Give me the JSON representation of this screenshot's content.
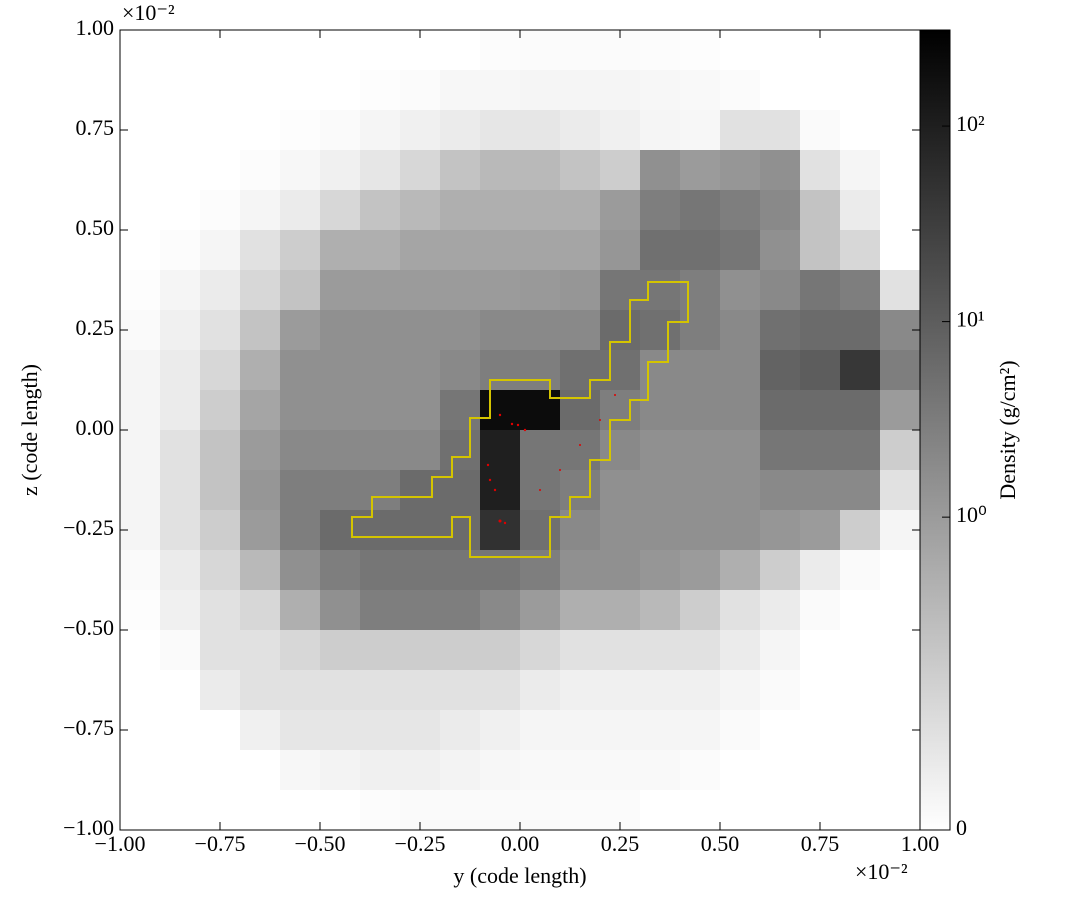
{
  "chart_data": {
    "type": "heatmap",
    "xlabel": "y  (code length)",
    "ylabel": "z  (code length)",
    "x_offset_label": "×10⁻²",
    "y_offset_label": "×10⁻²",
    "xlim": [
      -1,
      1
    ],
    "ylim": [
      -1,
      1
    ],
    "xticks": [
      {
        "value": -1,
        "label": "−1.00"
      },
      {
        "value": -0.75,
        "label": "−0.75"
      },
      {
        "value": -0.5,
        "label": "−0.50"
      },
      {
        "value": -0.25,
        "label": "−0.25"
      },
      {
        "value": 0,
        "label": "0.00"
      },
      {
        "value": 0.25,
        "label": "0.25"
      },
      {
        "value": 0.5,
        "label": "0.50"
      },
      {
        "value": 0.75,
        "label": "0.75"
      },
      {
        "value": 1,
        "label": "1.00"
      }
    ],
    "yticks": [
      {
        "value": -1,
        "label": "−1.00"
      },
      {
        "value": -0.75,
        "label": "−0.75"
      },
      {
        "value": -0.5,
        "label": "−0.50"
      },
      {
        "value": -0.25,
        "label": "−0.25"
      },
      {
        "value": 0,
        "label": "0.00"
      },
      {
        "value": 0.25,
        "label": "0.25"
      },
      {
        "value": 0.5,
        "label": "0.50"
      },
      {
        "value": 0.75,
        "label": "0.75"
      },
      {
        "value": 1,
        "label": "1.00"
      }
    ],
    "colorbar": {
      "label": "Density  (g/cm²)",
      "scale": "symlog",
      "linthresh": 1,
      "linscale": 1.6,
      "lim": [
        0,
        310
      ],
      "ticks": [
        0,
        {
          "value": 1,
          "label": "10⁰"
        },
        {
          "value": 10,
          "label": "10¹"
        },
        {
          "value": 100,
          "label": "10²"
        }
      ]
    },
    "z": [
      [
        0,
        0,
        0,
        0,
        0,
        0,
        0,
        0,
        0,
        0.03,
        0.04,
        0.04,
        0.04,
        0.03,
        0.02,
        0,
        0,
        0,
        0,
        0
      ],
      [
        0,
        0,
        0,
        0,
        0,
        0,
        0.02,
        0.04,
        0.08,
        0.08,
        0.1,
        0.1,
        0.1,
        0.08,
        0.06,
        0.04,
        0,
        0,
        0,
        0
      ],
      [
        0,
        0,
        0,
        0,
        0.02,
        0.05,
        0.1,
        0.15,
        0.2,
        0.25,
        0.25,
        0.2,
        0.15,
        0.1,
        0.08,
        0.3,
        0.3,
        0.05,
        0,
        0
      ],
      [
        0,
        0,
        0,
        0.03,
        0.08,
        0.15,
        0.25,
        0.4,
        0.6,
        0.7,
        0.7,
        0.6,
        0.5,
        1.5,
        1,
        1.2,
        1.5,
        0.3,
        0.1,
        0
      ],
      [
        0,
        0,
        0.03,
        0.1,
        0.2,
        0.4,
        0.6,
        0.7,
        0.8,
        0.8,
        0.8,
        0.8,
        1,
        3,
        4,
        3,
        2,
        0.6,
        0.2,
        0
      ],
      [
        0,
        0.03,
        0.1,
        0.3,
        0.5,
        0.8,
        0.8,
        0.9,
        0.9,
        0.9,
        0.9,
        0.9,
        1.2,
        5,
        5,
        4,
        1.5,
        0.6,
        0.4,
        0
      ],
      [
        0.02,
        0.1,
        0.2,
        0.4,
        0.6,
        1,
        1,
        1,
        1,
        1,
        1.1,
        1.2,
        4,
        4,
        3,
        1.5,
        2,
        4,
        3,
        0.3
      ],
      [
        0.05,
        0.15,
        0.3,
        0.6,
        1,
        1.5,
        1.5,
        1.5,
        1.5,
        2,
        2,
        2,
        6,
        5,
        3,
        2,
        5,
        6,
        6,
        2
      ],
      [
        0.1,
        0.2,
        0.4,
        0.8,
        1.5,
        1.5,
        1.5,
        1.5,
        2,
        3,
        3,
        5,
        5,
        2,
        2,
        2,
        8,
        10,
        40,
        3
      ],
      [
        0.1,
        0.2,
        0.5,
        0.9,
        1.5,
        1.5,
        1.5,
        1.5,
        4,
        200,
        200,
        6,
        3,
        2,
        2,
        2,
        6,
        6,
        6,
        1
      ],
      [
        0.1,
        0.3,
        0.6,
        1,
        2,
        2,
        2,
        2,
        5,
        100,
        4,
        4,
        2,
        1.5,
        1.5,
        1.5,
        4,
        4,
        4,
        0.5
      ],
      [
        0.1,
        0.3,
        0.6,
        1.2,
        3,
        3,
        3,
        6,
        6,
        100,
        4,
        3,
        1.5,
        1.5,
        1.5,
        1.5,
        2,
        2,
        2,
        0.3
      ],
      [
        0.1,
        0.3,
        0.5,
        1,
        3,
        6,
        6,
        6,
        6,
        50,
        5,
        2,
        1.5,
        1.5,
        1.5,
        1.5,
        1.2,
        1,
        0.5,
        0.1
      ],
      [
        0.05,
        0.2,
        0.4,
        0.7,
        1.5,
        3,
        4,
        4,
        4,
        4,
        3,
        1.5,
        1.5,
        1.2,
        1,
        0.8,
        0.5,
        0.2,
        0.05,
        0
      ],
      [
        0.02,
        0.15,
        0.3,
        0.4,
        0.8,
        1.5,
        3,
        3,
        3,
        2,
        1,
        0.8,
        0.8,
        0.7,
        0.5,
        0.3,
        0.2,
        0.05,
        0,
        0
      ],
      [
        0,
        0.05,
        0.3,
        0.3,
        0.4,
        0.5,
        0.5,
        0.5,
        0.5,
        0.5,
        0.4,
        0.3,
        0.3,
        0.3,
        0.3,
        0.2,
        0.1,
        0,
        0,
        0
      ],
      [
        0,
        0,
        0.2,
        0.3,
        0.3,
        0.3,
        0.3,
        0.3,
        0.3,
        0.3,
        0.2,
        0.15,
        0.15,
        0.15,
        0.15,
        0.1,
        0.05,
        0,
        0,
        0
      ],
      [
        0,
        0,
        0,
        0.15,
        0.25,
        0.25,
        0.25,
        0.25,
        0.2,
        0.15,
        0.1,
        0.1,
        0.1,
        0.1,
        0.1,
        0.05,
        0,
        0,
        0,
        0
      ],
      [
        0,
        0,
        0,
        0,
        0.08,
        0.12,
        0.15,
        0.15,
        0.12,
        0.08,
        0.06,
        0.06,
        0.06,
        0.06,
        0.04,
        0,
        0,
        0,
        0,
        0
      ],
      [
        0,
        0,
        0,
        0,
        0,
        0,
        0.03,
        0.05,
        0.05,
        0.05,
        0.05,
        0.04,
        0.04,
        0,
        0,
        0,
        0,
        0,
        0,
        0
      ]
    ]
  }
}
